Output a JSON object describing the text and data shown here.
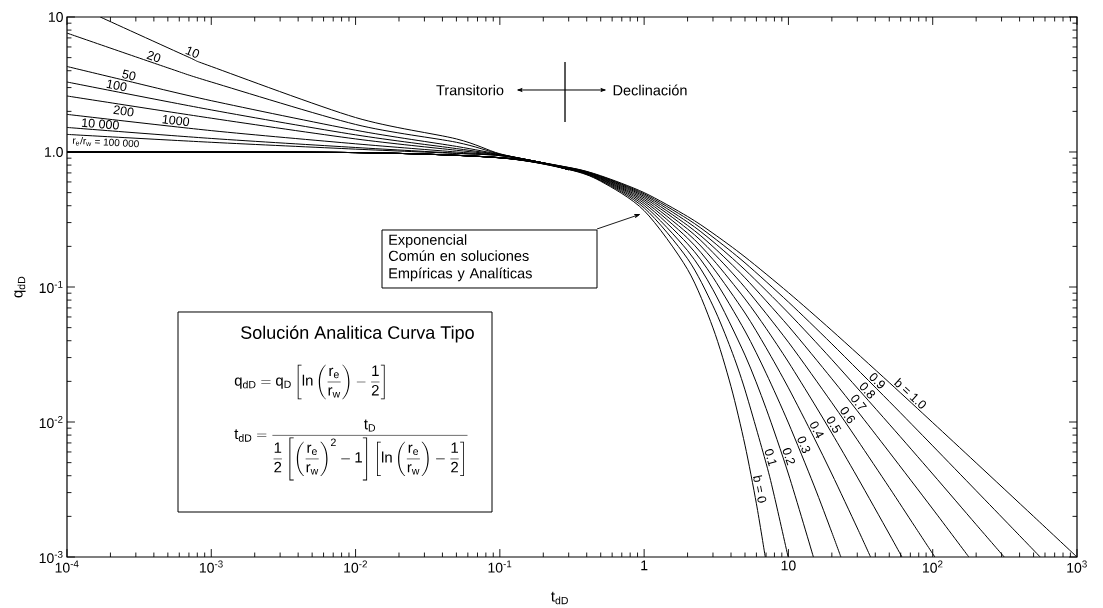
{
  "chart_data": {
    "type": "line",
    "xlabel": "t$_{dD}$",
    "ylabel": "q$_{dD}$",
    "log": "xy",
    "xlim": [
      0.0001,
      1000
    ],
    "ylim": [
      0.001,
      10
    ],
    "xticks": [
      {
        "value": 0.0001,
        "label": "10$^{-4}$"
      },
      {
        "value": 0.001,
        "label": "10$^{-3}$"
      },
      {
        "value": 0.01,
        "label": "10$^{-2}$"
      },
      {
        "value": 0.1,
        "label": "10$^{-1}$"
      },
      1,
      10,
      {
        "value": 100,
        "label": "10$^{2}$"
      },
      {
        "value": 1000,
        "label": "10$^{3}$"
      }
    ],
    "yticks": [
      {
        "value": 0.001,
        "label": "10$^{-3}$"
      },
      {
        "value": 0.01,
        "label": "10$^{-2}$"
      },
      {
        "value": 0.1,
        "label": "10$^{-1}$"
      },
      {
        "value": 1,
        "label": "1.0"
      },
      10
    ],
    "series": [
      {
        "name": "10",
        "color": "#000000",
        "x": [
          0.00017,
          0.00068,
          0.001,
          0.01,
          0.05,
          0.1,
          0.2,
          0.3
        ],
        "values": [
          10,
          5.1,
          4.3,
          1.8,
          1.25,
          0.97,
          0.83,
          0.74
        ]
      },
      {
        "name": "20",
        "color": "#000000",
        "x": [
          0.0001,
          0.0005,
          0.001,
          0.01,
          0.05,
          0.1,
          0.2,
          0.3
        ],
        "values": [
          7.6,
          4.2,
          3.3,
          1.6,
          1.18,
          0.965,
          0.83,
          0.74
        ]
      },
      {
        "name": "50",
        "color": "#000000",
        "x": [
          0.0001,
          0.00025,
          0.001,
          0.01,
          0.05,
          0.1,
          0.2,
          0.3
        ],
        "values": [
          4.3,
          3.4,
          2.4,
          1.45,
          1.1,
          0.96,
          0.83,
          0.74
        ]
      },
      {
        "name": "100",
        "color": "#000000",
        "x": [
          0.0001,
          0.001,
          0.01,
          0.05,
          0.1,
          0.2,
          0.3
        ],
        "values": [
          3.3,
          2.05,
          1.34,
          1.06,
          0.955,
          0.83,
          0.74
        ]
      },
      {
        "name": "200",
        "color": "#000000",
        "x": [
          0.0001,
          0.001,
          0.01,
          0.05,
          0.1,
          0.2,
          0.3
        ],
        "values": [
          2.6,
          1.78,
          1.25,
          1.03,
          0.95,
          0.83,
          0.74
        ]
      },
      {
        "name": "1000",
        "color": "#000000",
        "x": [
          0.0001,
          0.001,
          0.01,
          0.05,
          0.1,
          0.2,
          0.3
        ],
        "values": [
          1.9,
          1.44,
          1.15,
          1.0,
          0.945,
          0.83,
          0.74
        ]
      },
      {
        "name": "10 000",
        "color": "#000000",
        "x": [
          0.0001,
          0.001,
          0.01,
          0.05,
          0.1,
          0.2,
          0.3
        ],
        "values": [
          1.52,
          1.26,
          1.08,
          0.98,
          0.94,
          0.83,
          0.74
        ]
      },
      {
        "name": "r$_{e}$/r$_{w}$ = 100 000",
        "color": "#000000",
        "x": [
          0.0001,
          0.001,
          0.01,
          0.05,
          0.1,
          0.2,
          0.3
        ],
        "values": [
          1.35,
          1.18,
          1.05,
          0.975,
          0.94,
          0.83,
          0.74
        ]
      },
      {
        "name": "b = 0",
        "color": "#000000",
        "x": [
          0.0001,
          0.01,
          0.1,
          0.3,
          0.5,
          1,
          2,
          3,
          4,
          5,
          6,
          6.91
        ],
        "values": [
          1,
          0.99,
          0.905,
          0.741,
          0.607,
          0.368,
          0.135,
          0.0498,
          0.0183,
          0.00674,
          0.00248,
          0.001
        ]
      },
      {
        "name": "0.1",
        "color": "#000000",
        "x": [
          0.0001,
          0.01,
          0.1,
          0.3,
          0.5,
          1,
          2,
          3,
          4,
          5,
          7,
          8,
          9.95
        ],
        "values": [
          1,
          0.99,
          0.905,
          0.744,
          0.614,
          0.386,
          0.162,
          0.0725,
          0.0346,
          0.0173,
          0.00496,
          0.0028,
          0.001
        ]
      },
      {
        "name": "0.2",
        "color": "#000000",
        "x": [
          0.0001,
          0.01,
          0.1,
          0.3,
          0.5,
          1,
          2,
          3,
          5,
          7,
          10,
          14.9
        ],
        "values": [
          1,
          0.99,
          0.906,
          0.747,
          0.621,
          0.402,
          0.186,
          0.0954,
          0.0313,
          0.0126,
          0.00412,
          0.001
        ]
      },
      {
        "name": "0.3",
        "color": "#000000",
        "x": [
          0.0001,
          0.01,
          0.1,
          0.3,
          0.5,
          1,
          2,
          3,
          5,
          7,
          10,
          15,
          20,
          23.1
        ],
        "values": [
          1,
          0.99,
          0.906,
          0.75,
          0.628,
          0.417,
          0.209,
          0.118,
          0.0472,
          0.023,
          0.00984,
          0.00341,
          0.00152,
          0.001
        ]
      },
      {
        "name": "0.4",
        "color": "#000000",
        "x": [
          0.0001,
          0.01,
          0.1,
          0.3,
          0.5,
          1,
          2,
          3,
          5,
          7,
          10,
          15,
          20,
          30,
          37.1
        ],
        "values": [
          1,
          0.99,
          0.907,
          0.753,
          0.634,
          0.431,
          0.23,
          0.139,
          0.0642,
          0.0355,
          0.0179,
          0.0077,
          0.00412,
          0.00164,
          0.001
        ]
      },
      {
        "name": "0.5",
        "color": "#000000",
        "x": [
          0.0001,
          0.01,
          0.1,
          0.3,
          0.5,
          1,
          2,
          3,
          5,
          7,
          10,
          15,
          20,
          30,
          50,
          61.2
        ],
        "values": [
          1,
          0.99,
          0.907,
          0.756,
          0.64,
          0.444,
          0.25,
          0.16,
          0.0816,
          0.0494,
          0.0278,
          0.0138,
          0.00826,
          0.00391,
          0.00148,
          0.001
        ]
      },
      {
        "name": "0.6",
        "color": "#000000",
        "x": [
          0.0001,
          0.01,
          0.1,
          0.3,
          0.5,
          1,
          2,
          3,
          5,
          10,
          20,
          30,
          50,
          75,
          103.5
        ],
        "values": [
          1,
          0.99,
          0.907,
          0.759,
          0.646,
          0.457,
          0.269,
          0.18,
          0.0992,
          0.039,
          0.0139,
          0.00739,
          0.00327,
          0.00169,
          0.001
        ]
      },
      {
        "name": "0.7",
        "color": "#000000",
        "x": [
          0.0001,
          0.01,
          0.1,
          0.3,
          0.5,
          1,
          2,
          3,
          5,
          10,
          20,
          30,
          50,
          100,
          178
        ],
        "values": [
          1,
          0.99,
          0.908,
          0.762,
          0.651,
          0.469,
          0.286,
          0.199,
          0.117,
          0.0513,
          0.0209,
          0.0121,
          0.00598,
          0.00227,
          0.001
        ]
      },
      {
        "name": "0.8",
        "color": "#000000",
        "x": [
          0.0001,
          0.01,
          0.1,
          0.3,
          0.5,
          1,
          2,
          3,
          5,
          10,
          20,
          50,
          100,
          200,
          313
        ],
        "values": [
          1,
          0.99,
          0.908,
          0.764,
          0.657,
          0.48,
          0.303,
          0.217,
          0.134,
          0.0642,
          0.029,
          0.00964,
          0.00412,
          0.00174,
          0.001
        ]
      },
      {
        "name": "0.9",
        "color": "#000000",
        "x": [
          0.0001,
          0.01,
          0.1,
          0.3,
          0.5,
          1,
          2,
          3,
          5,
          10,
          20,
          50,
          100,
          200,
          350,
          556
        ],
        "values": [
          1,
          0.99,
          0.909,
          0.767,
          0.662,
          0.49,
          0.319,
          0.234,
          0.151,
          0.0774,
          0.0379,
          0.0142,
          0.00666,
          0.0031,
          0.00167,
          0.001
        ]
      },
      {
        "name": "b = 1.0",
        "color": "#000000",
        "x": [
          0.0001,
          0.01,
          0.1,
          0.3,
          0.5,
          1,
          2,
          3,
          5,
          10,
          20,
          50,
          100,
          200,
          500,
          1000
        ],
        "values": [
          1,
          0.99,
          0.909,
          0.769,
          0.667,
          0.5,
          0.333,
          0.25,
          0.167,
          0.0909,
          0.0476,
          0.0196,
          0.0099,
          0.00498,
          0.002,
          0.001
        ]
      }
    ],
    "annotations": [
      "Transitorio",
      "Declinación",
      "Exponencial",
      "Común en soluciones Empíricas y Analíticas",
      "Solución Analitica Curva Tipo",
      "\\mathrm{q}_{\\mathrm{dD}} = \\mathrm{q}_{\\mathrm{D}}\\left[\\ln\\left(\\frac{\\mathrm{r}_{\\mathrm{e}}}{\\mathrm{r}_{\\mathrm{w}}}\\right) - \\frac{\\mathrm{1}}{\\mathrm{2}}\\right]",
      "\\mathrm{t}_{\\mathrm{dD}} = \\frac{\\mathrm{t}_{\\mathrm{D}}}{\\dfrac{\\mathrm{1}}{\\mathrm{2}}\\left[\\left(\\dfrac{\\mathrm{r}_{\\mathrm{e}}}{\\mathrm{r}_{\\mathrm{w}}}\\right)^{\\mathrm{2}} - \\mathrm{1}\\right]\\left[\\ln\\left(\\dfrac{\\mathrm{r}_{\\mathrm{e}}}{\\mathrm{r}_{\\mathrm{w}}}\\right) - \\dfrac{\\mathrm{1}}{\\mathrm{2}}\\right]}"
    ]
  }
}
